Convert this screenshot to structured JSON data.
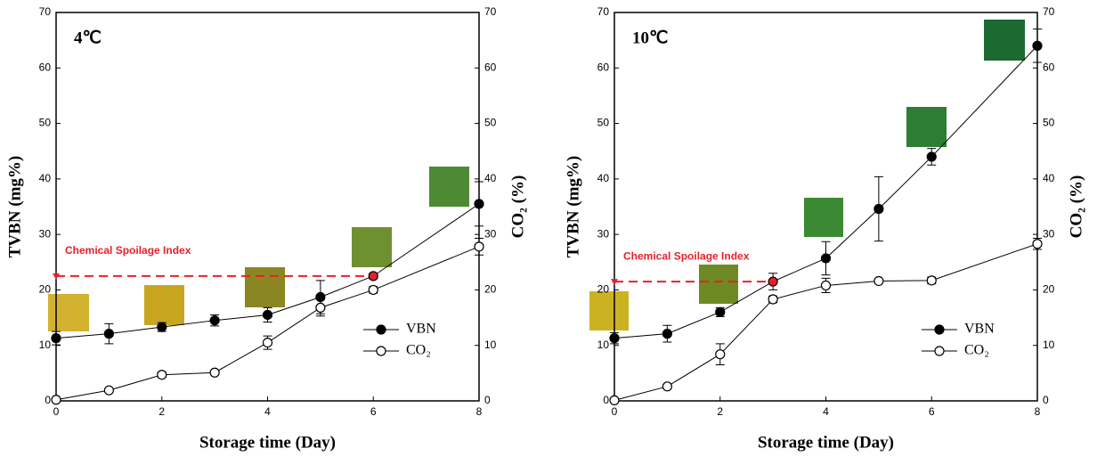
{
  "chart_data": [
    {
      "type": "line",
      "title": "4℃",
      "xlabel": "Storage time (Day)",
      "ylabel": "TVBN (mg%)",
      "y2label": "CO₂ (%)",
      "xlim": [
        0,
        8
      ],
      "xticks": [
        0,
        2,
        4,
        6,
        8
      ],
      "ylim": [
        0,
        70
      ],
      "yticks": [
        0,
        10,
        20,
        30,
        40,
        50,
        60,
        70
      ],
      "y2lim": [
        0,
        70
      ],
      "y2ticks": [
        0,
        10,
        20,
        30,
        40,
        50,
        60,
        70
      ],
      "legend": "lower right",
      "threshold": {
        "label": "Chemical Spoilage Index",
        "value": 22.5,
        "x": 6,
        "color": "#e8202a"
      },
      "x": [
        0,
        1,
        2,
        3,
        4,
        5,
        6,
        8
      ],
      "series": [
        {
          "name": "VBN",
          "color": "#000000",
          "marker": "filled",
          "values": [
            11.3,
            12.1,
            13.3,
            14.5,
            15.5,
            18.7,
            22.5,
            35.5
          ],
          "errors": [
            1.2,
            1.8,
            0.8,
            1,
            1.3,
            3,
            0.5,
            4
          ]
        },
        {
          "name": "CO₂",
          "color": "#000000",
          "marker": "open",
          "axis": "y2",
          "values": [
            0.2,
            1.9,
            4.7,
            5.1,
            10.5,
            16.8,
            20,
            27.8
          ],
          "errors": [
            0,
            0.3,
            0.5,
            0.3,
            1.2,
            1.5,
            0.6,
            1.5
          ]
        }
      ]
    },
    {
      "type": "line",
      "title": "10℃",
      "xlabel": "Storage time (Day)",
      "ylabel": "TVBN (mg%)",
      "y2label": "CO₂ (%)",
      "xlim": [
        0,
        8
      ],
      "xticks": [
        0,
        2,
        4,
        6,
        8
      ],
      "ylim": [
        0,
        70
      ],
      "yticks": [
        0,
        10,
        20,
        30,
        40,
        50,
        60,
        70
      ],
      "y2lim": [
        0,
        70
      ],
      "y2ticks": [
        0,
        10,
        20,
        30,
        40,
        50,
        60,
        70
      ],
      "legend": "lower right",
      "threshold": {
        "label": "Chemical Spoilage Index",
        "value": 21.5,
        "x": 3,
        "color": "#e8202a"
      },
      "x": [
        0,
        1,
        2,
        3,
        4,
        5,
        6,
        8
      ],
      "series": [
        {
          "name": "VBN",
          "color": "#000000",
          "marker": "filled",
          "values": [
            11.3,
            12.1,
            16,
            21.5,
            25.7,
            34.6,
            44,
            64
          ],
          "errors": [
            1,
            1.5,
            0.8,
            1.5,
            3,
            5.8,
            1.5,
            3
          ]
        },
        {
          "name": "CO₂",
          "color": "#000000",
          "marker": "open",
          "axis": "y2",
          "values": [
            0.1,
            2.6,
            8.4,
            18.3,
            20.8,
            21.6,
            21.7,
            28.3
          ],
          "errors": [
            0,
            0.3,
            1.9,
            0.6,
            1.3,
            0.3,
            0.6,
            1
          ]
        }
      ]
    }
  ]
}
